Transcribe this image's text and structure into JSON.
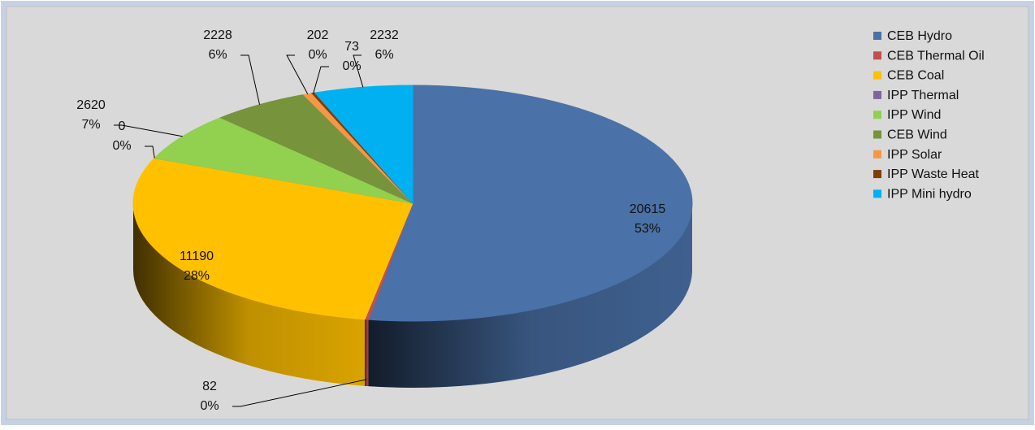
{
  "chart_data": {
    "type": "pie3d",
    "categories": [
      "CEB Hydro",
      "CEB Thermal Oil",
      "CEB Coal",
      "IPP Thermal",
      "IPP Wind",
      "CEB Wind",
      "IPP Solar",
      "IPP Waste Heat",
      "IPP Mini hydro"
    ],
    "values": [
      20615,
      82,
      11190,
      0,
      2620,
      2228,
      202,
      73,
      2232
    ],
    "percent_labels": [
      "53%",
      "0%",
      "28%",
      "0%",
      "7%",
      "6%",
      "0%",
      "0%",
      "6%"
    ],
    "colors": [
      "#4a71a8",
      "#c0504d",
      "#ffc000",
      "#8064a2",
      "#92d050",
      "#77933c",
      "#f79646",
      "#7f3f00",
      "#00b0f0"
    ],
    "legend": "right"
  }
}
